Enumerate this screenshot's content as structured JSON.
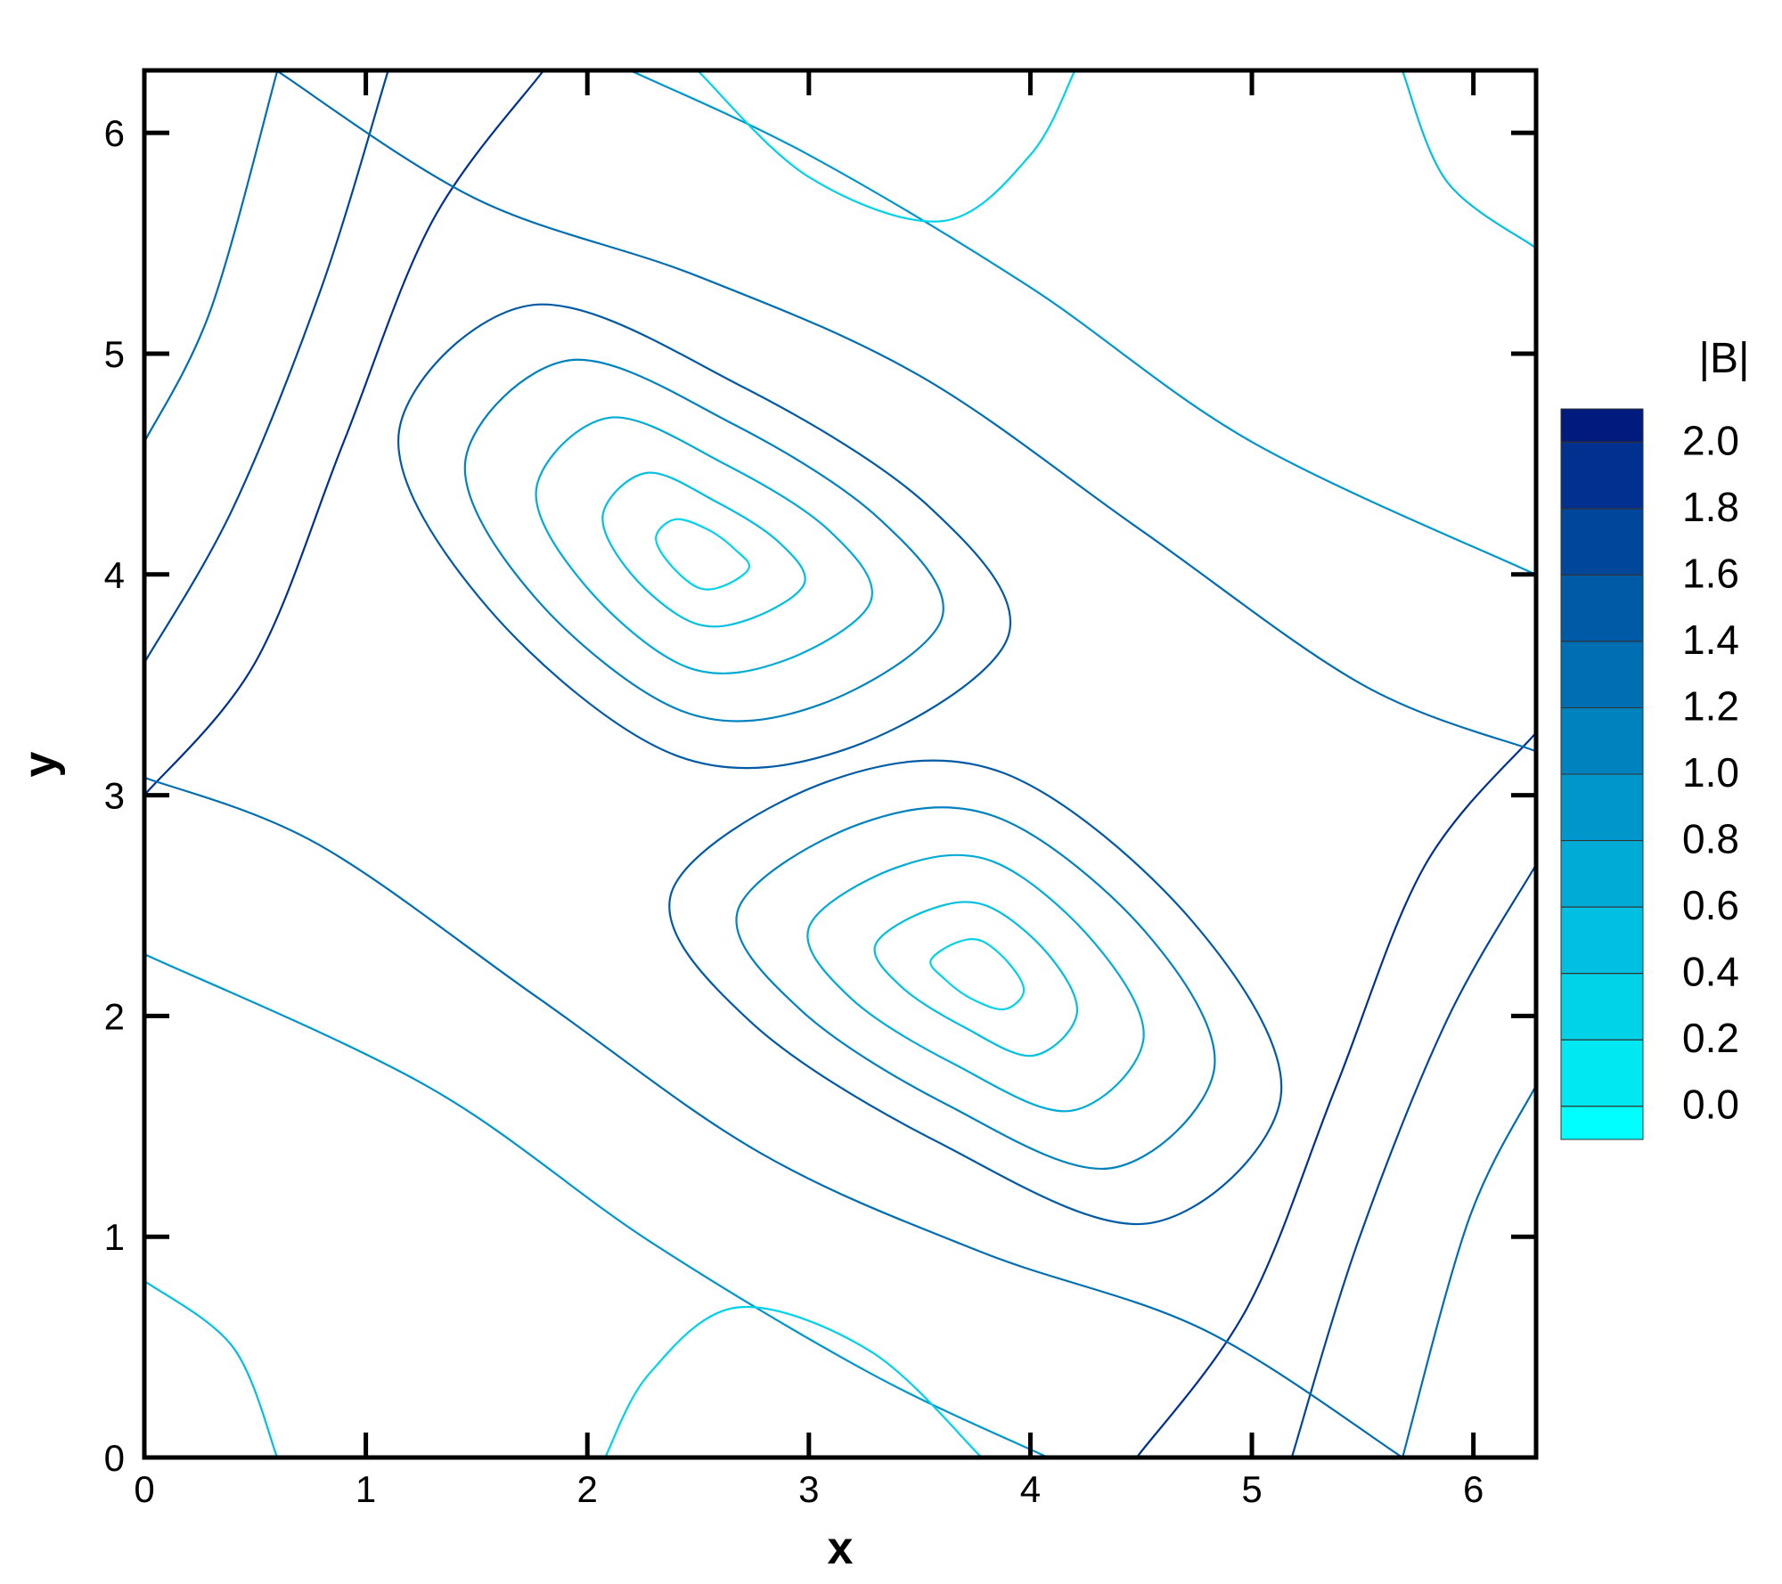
{
  "chart_data": {
    "type": "streamline",
    "x_label": "x",
    "y_label": "y",
    "xlim": [
      0,
      6.283
    ],
    "ylim": [
      0,
      6.283
    ],
    "xticks": [
      0,
      1,
      2,
      3,
      4,
      5,
      6
    ],
    "yticks": [
      0,
      1,
      2,
      3,
      4,
      5,
      6
    ],
    "colorbar": {
      "title": "|B|",
      "zlim": [
        -0.1,
        2.1
      ],
      "ticks": [
        {
          "value": 0,
          "label": "0.0"
        },
        {
          "value": 0.2,
          "label": "0.2"
        },
        {
          "value": 0.4,
          "label": "0.4"
        },
        {
          "value": 0.6,
          "label": "0.6"
        },
        {
          "value": 0.8,
          "label": "0.8"
        },
        {
          "value": 1.0,
          "label": "1.0"
        },
        {
          "value": 1.2,
          "label": "1.2"
        },
        {
          "value": 1.4,
          "label": "1.4"
        },
        {
          "value": 1.6,
          "label": "1.6"
        },
        {
          "value": 1.8,
          "label": "1.8"
        },
        {
          "value": 2.0,
          "label": "2.0"
        }
      ],
      "colors": [
        "#00ffff",
        "#00e8f2",
        "#00d2e8",
        "#00bfe0",
        "#00abd6",
        "#0096cb",
        "#0082bf",
        "#006eb2",
        "#005aa6",
        "#00469a",
        "#003090",
        "#001a7e"
      ]
    },
    "streamlines": [
      {
        "closed": true,
        "value": 1.5,
        "x": [
          1.15,
          1.75,
          2.7,
          3.55,
          3.9,
          3.2,
          2.4,
          1.55
        ],
        "y": [
          4.65,
          5.22,
          4.85,
          4.3,
          3.72,
          3.22,
          3.18,
          3.85
        ]
      },
      {
        "closed": true,
        "value": 1.0,
        "x": [
          1.45,
          1.92,
          2.66,
          3.32,
          3.6,
          3.05,
          2.43,
          1.76
        ],
        "y": [
          4.52,
          4.97,
          4.68,
          4.25,
          3.8,
          3.41,
          3.38,
          3.9
        ]
      },
      {
        "closed": true,
        "value": 0.7,
        "x": [
          1.77,
          2.1,
          2.62,
          3.09,
          3.28,
          2.89,
          2.45,
          1.99
        ],
        "y": [
          4.39,
          4.71,
          4.5,
          4.2,
          3.88,
          3.61,
          3.58,
          3.95
        ]
      },
      {
        "closed": true,
        "value": 0.45,
        "x": [
          2.07,
          2.27,
          2.58,
          2.86,
          2.98,
          2.74,
          2.48,
          2.2
        ],
        "y": [
          4.27,
          4.46,
          4.33,
          4.15,
          3.96,
          3.8,
          3.78,
          4.0
        ]
      },
      {
        "closed": true,
        "value": 0.3,
        "x": [
          2.31,
          2.4,
          2.55,
          2.67,
          2.73,
          2.62,
          2.5,
          2.37
        ],
        "y": [
          4.17,
          4.25,
          4.2,
          4.11,
          4.03,
          3.95,
          3.94,
          4.05
        ]
      },
      {
        "closed": true,
        "value": 1.5,
        "x": [
          5.13,
          4.53,
          3.58,
          2.73,
          2.38,
          3.08,
          3.88,
          4.73
        ],
        "y": [
          1.63,
          1.06,
          1.43,
          1.98,
          2.56,
          3.06,
          3.1,
          2.43
        ]
      },
      {
        "closed": true,
        "value": 1.0,
        "x": [
          4.83,
          4.36,
          3.62,
          2.96,
          2.68,
          3.23,
          3.85,
          4.52
        ],
        "y": [
          1.76,
          1.31,
          1.6,
          2.03,
          2.48,
          2.87,
          2.9,
          2.38
        ]
      },
      {
        "closed": true,
        "value": 0.7,
        "x": [
          4.51,
          4.18,
          3.66,
          3.19,
          3.0,
          3.39,
          3.83,
          4.29
        ],
        "y": [
          1.89,
          1.57,
          1.78,
          2.08,
          2.4,
          2.67,
          2.7,
          2.33
        ]
      },
      {
        "closed": true,
        "value": 0.45,
        "x": [
          4.21,
          4.01,
          3.7,
          3.42,
          3.3,
          3.54,
          3.8,
          4.08
        ],
        "y": [
          2.01,
          1.82,
          1.95,
          2.13,
          2.32,
          2.48,
          2.5,
          2.28
        ]
      },
      {
        "closed": true,
        "value": 0.3,
        "x": [
          3.97,
          3.88,
          3.73,
          3.61,
          3.55,
          3.66,
          3.78,
          3.91
        ],
        "y": [
          2.11,
          2.03,
          2.08,
          2.17,
          2.25,
          2.33,
          2.34,
          2.23
        ]
      },
      {
        "closed": false,
        "value": 1.9,
        "x": [
          0,
          0.5,
          0.9,
          1.3,
          1.8
        ],
        "y": [
          3.0,
          3.6,
          4.6,
          5.6,
          6.28
        ]
      },
      {
        "closed": false,
        "value": 1.6,
        "x": [
          0,
          0.4,
          0.8,
          1.1
        ],
        "y": [
          3.6,
          4.3,
          5.3,
          6.28
        ]
      },
      {
        "closed": false,
        "value": 1.2,
        "x": [
          0,
          0.3,
          0.6
        ],
        "y": [
          4.6,
          5.2,
          6.28
        ]
      },
      {
        "closed": false,
        "value": 1.9,
        "x": [
          6.28,
          5.78,
          5.38,
          4.98,
          4.48
        ],
        "y": [
          3.28,
          2.68,
          1.68,
          0.68,
          0
        ]
      },
      {
        "closed": false,
        "value": 1.6,
        "x": [
          6.28,
          5.88,
          5.48,
          5.18
        ],
        "y": [
          2.68,
          1.98,
          0.98,
          0
        ]
      },
      {
        "closed": false,
        "value": 1.2,
        "x": [
          6.28,
          5.98,
          5.68
        ],
        "y": [
          1.68,
          1.08,
          0
        ]
      },
      {
        "closed": false,
        "value": 1.3,
        "x": [
          0.6,
          1.5,
          2.5,
          3.5,
          4.5,
          5.5,
          6.28
        ],
        "y": [
          6.28,
          5.7,
          5.35,
          4.9,
          4.2,
          3.5,
          3.2
        ]
      },
      {
        "closed": false,
        "value": 0.9,
        "x": [
          2.2,
          3.0,
          4.0,
          5.0,
          6.28
        ],
        "y": [
          6.28,
          5.9,
          5.3,
          4.6,
          4.0
        ]
      },
      {
        "closed": false,
        "value": 1.3,
        "x": [
          5.68,
          4.78,
          3.78,
          2.78,
          1.78,
          0.78,
          0
        ],
        "y": [
          0,
          0.58,
          0.93,
          1.38,
          2.08,
          2.78,
          3.08
        ]
      },
      {
        "closed": false,
        "value": 0.9,
        "x": [
          4.08,
          3.28,
          2.28,
          1.28,
          0
        ],
        "y": [
          0,
          0.38,
          0.98,
          1.68,
          2.28
        ]
      },
      {
        "closed": false,
        "value": 0.3,
        "x": [
          2.5,
          3.0,
          3.6,
          4.0,
          4.2
        ],
        "y": [
          6.28,
          5.8,
          5.6,
          5.9,
          6.28
        ]
      },
      {
        "closed": false,
        "value": 0.3,
        "x": [
          3.78,
          3.28,
          2.68,
          2.28,
          2.08
        ],
        "y": [
          0,
          0.48,
          0.68,
          0.38,
          0
        ]
      },
      {
        "closed": false,
        "value": 0.4,
        "x": [
          0,
          0.4,
          0.6
        ],
        "y": [
          0.8,
          0.5,
          0
        ]
      },
      {
        "closed": false,
        "value": 0.4,
        "x": [
          6.28,
          5.88,
          5.68
        ],
        "y": [
          5.48,
          5.78,
          6.28
        ]
      }
    ]
  }
}
